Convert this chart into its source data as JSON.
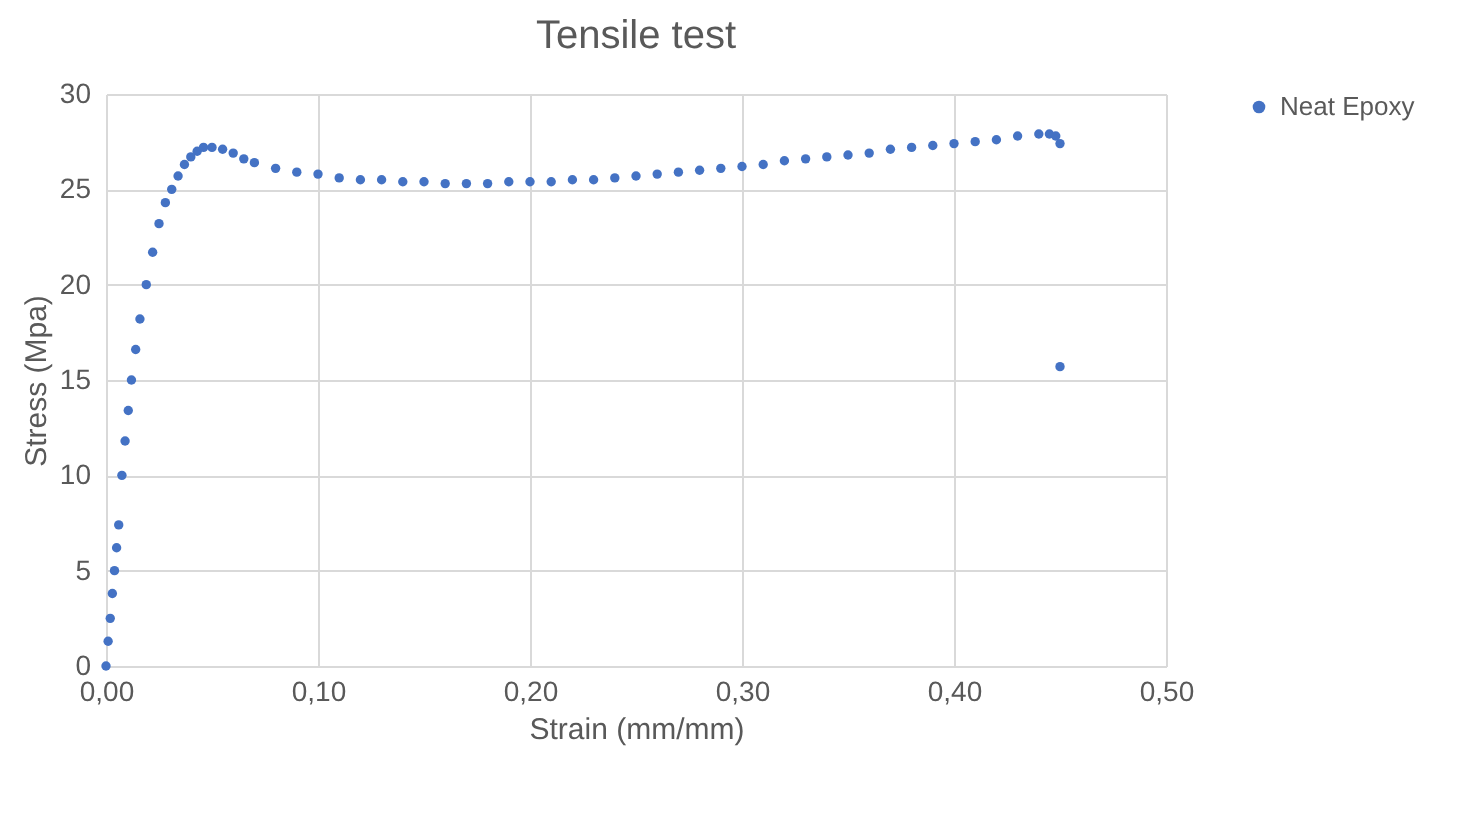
{
  "chart_data": {
    "type": "scatter",
    "title": "Tensile test",
    "xlabel": "Strain (mm/mm)",
    "ylabel": "Stress (Mpa)",
    "xlim": [
      0,
      0.5
    ],
    "xticks": [
      {
        "value": 0,
        "label": "0,00"
      },
      {
        "value": 0.1,
        "label": "0,10"
      },
      {
        "value": 0.2,
        "label": "0,20"
      },
      {
        "value": 0.3,
        "label": "0,30"
      },
      {
        "value": 0.4,
        "label": "0,40"
      },
      {
        "value": 0.5,
        "label": "0,50"
      }
    ],
    "ylim": [
      0,
      30
    ],
    "yticks": [
      0,
      5,
      10,
      15,
      20,
      25,
      30
    ],
    "grid": true,
    "legend": "right",
    "marker": "circle",
    "series": [
      {
        "name": "Neat Epoxy",
        "color": "#4472c4",
        "x": [
          0,
          0.001,
          0.002,
          0.003,
          0.004,
          0.005,
          0.006,
          0.0075,
          0.009,
          0.0105,
          0.012,
          0.014,
          0.016,
          0.019,
          0.022,
          0.025,
          0.028,
          0.031,
          0.034,
          0.037,
          0.04,
          0.043,
          0.046,
          0.05,
          0.055,
          0.06,
          0.065,
          0.07,
          0.08,
          0.09,
          0.1,
          0.11,
          0.12,
          0.13,
          0.14,
          0.15,
          0.16,
          0.17,
          0.18,
          0.19,
          0.2,
          0.21,
          0.22,
          0.23,
          0.24,
          0.25,
          0.26,
          0.27,
          0.28,
          0.29,
          0.3,
          0.31,
          0.32,
          0.33,
          0.34,
          0.35,
          0.36,
          0.37,
          0.38,
          0.39,
          0.4,
          0.41,
          0.42,
          0.43,
          0.44,
          0.445,
          0.448,
          0.45,
          0.45
        ],
        "values": [
          0,
          1.3,
          2.5,
          3.8,
          5,
          6.2,
          7.4,
          10,
          11.8,
          13.4,
          15,
          16.6,
          18.2,
          20,
          21.7,
          23.2,
          24.3,
          25,
          25.7,
          26.3,
          26.7,
          27,
          27.2,
          27.2,
          27.1,
          26.9,
          26.6,
          26.4,
          26.1,
          25.9,
          25.8,
          25.6,
          25.5,
          25.5,
          25.4,
          25.4,
          25.3,
          25.3,
          25.3,
          25.4,
          25.4,
          25.4,
          25.5,
          25.5,
          25.6,
          25.7,
          25.8,
          25.9,
          26,
          26.1,
          26.2,
          26.3,
          26.5,
          26.6,
          26.7,
          26.8,
          26.9,
          27.1,
          27.2,
          27.3,
          27.4,
          27.5,
          27.6,
          27.8,
          27.9,
          27.9,
          27.8,
          27.4,
          15.7
        ]
      }
    ]
  }
}
